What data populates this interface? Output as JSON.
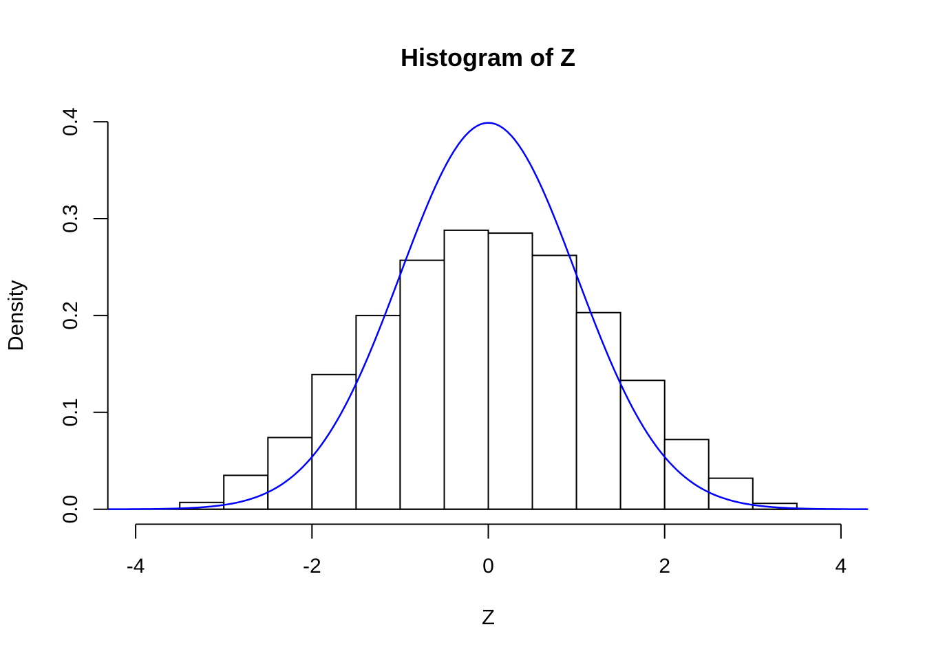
{
  "figure": {
    "background": "#ffffff"
  },
  "chart_data": {
    "type": "histogram",
    "title": "Histogram of Z",
    "xlabel": "Z",
    "ylabel": "Density",
    "bins": {
      "breaks": [
        -3.5,
        -3.0,
        -2.5,
        -2.0,
        -1.5,
        -1.0,
        -0.5,
        0.0,
        0.5,
        1.0,
        1.5,
        2.0,
        2.5,
        3.0,
        3.5
      ],
      "densities": [
        0.007,
        0.035,
        0.074,
        0.139,
        0.2,
        0.257,
        0.288,
        0.285,
        0.262,
        0.203,
        0.133,
        0.072,
        0.032,
        0.006
      ]
    },
    "x_ticks": {
      "values": [
        -4,
        -2,
        0,
        2,
        4
      ],
      "labels": [
        "-4",
        "-2",
        "0",
        "2",
        "4"
      ]
    },
    "y_ticks": {
      "values": [
        0.0,
        0.1,
        0.2,
        0.3,
        0.4
      ],
      "labels": [
        "0.0",
        "0.1",
        "0.2",
        "0.3",
        "0.4"
      ]
    },
    "xlim": [
      -4.3,
      4.3
    ],
    "ylim": [
      0,
      0.4
    ],
    "grid": false,
    "legend": null,
    "overlay_curve": {
      "type": "normal-density",
      "mean": 0,
      "sd": 1,
      "x_from": -4.3,
      "x_to": 4.3,
      "peak_density": 0.3989,
      "color": "#0000ff"
    },
    "colors": {
      "bar_fill": "#ffffff",
      "bar_stroke": "#000000",
      "axis": "#000000",
      "text": "#000000"
    }
  }
}
